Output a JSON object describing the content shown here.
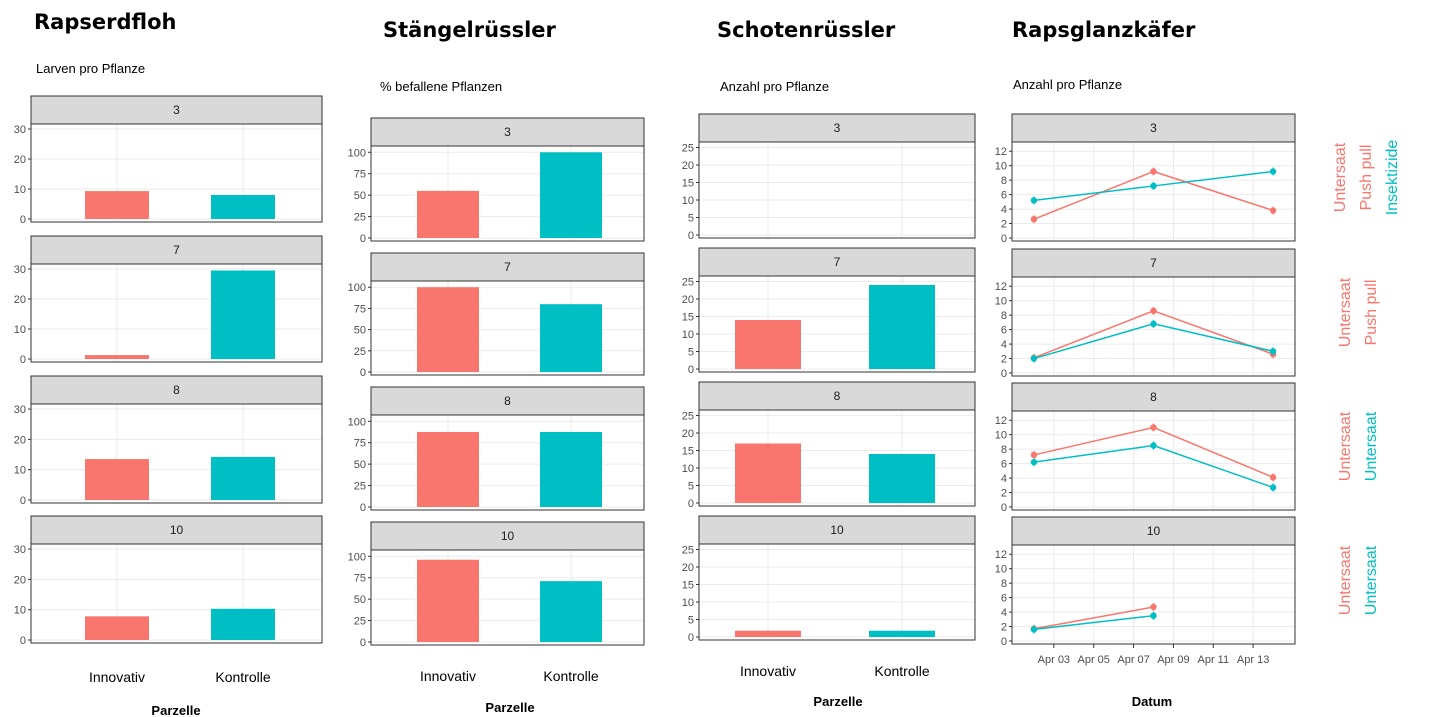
{
  "chart_data": [
    {
      "type": "bar",
      "title": "Rapserdfloh",
      "ylabel": "Larven pro Pflanze",
      "xlabel": "Parzelle",
      "categories": [
        "Innovativ",
        "Kontrolle"
      ],
      "facet_labels": [
        "3",
        "7",
        "8",
        "10"
      ],
      "ylim": [
        0,
        31
      ],
      "yticks": [
        "0",
        "10",
        "20",
        "30"
      ],
      "series": [
        {
          "values": [
            9.3,
            8.0
          ],
          "colors": [
            "#F8766D",
            "#00BFC4"
          ]
        },
        {
          "values": [
            1.3,
            29.5
          ],
          "colors": [
            "#F8766D",
            "#00BFC4"
          ]
        },
        {
          "values": [
            13.5,
            14.2
          ],
          "colors": [
            "#F8766D",
            "#00BFC4"
          ]
        },
        {
          "values": [
            7.8,
            10.3
          ],
          "colors": [
            "#F8766D",
            "#00BFC4"
          ]
        }
      ]
    },
    {
      "type": "bar",
      "title": "Stängelrüssler",
      "ylabel": "% befallene Pflanzen",
      "xlabel": "Parzelle",
      "categories": [
        "Innovativ",
        "Kontrolle"
      ],
      "facet_labels": [
        "3",
        "7",
        "8",
        "10"
      ],
      "ylim": [
        0,
        105
      ],
      "yticks": [
        "0",
        "25",
        "50",
        "75",
        "100"
      ],
      "series": [
        {
          "values": [
            55,
            100
          ],
          "colors": [
            "#F8766D",
            "#00BFC4"
          ]
        },
        {
          "values": [
            100,
            80
          ],
          "colors": [
            "#F8766D",
            "#00BFC4"
          ]
        },
        {
          "values": [
            87.5,
            87.5
          ],
          "colors": [
            "#F8766D",
            "#00BFC4"
          ]
        },
        {
          "values": [
            96,
            71
          ],
          "colors": [
            "#F8766D",
            "#00BFC4"
          ]
        }
      ]
    },
    {
      "type": "bar",
      "title": "Schotenrüssler",
      "ylabel": "Anzahl pro Pflanze",
      "xlabel": "Parzelle",
      "categories": [
        "Innovativ",
        "Kontrolle"
      ],
      "facet_labels": [
        "3",
        "7",
        "8",
        "10"
      ],
      "ylim": [
        0,
        26
      ],
      "yticks": [
        "0",
        "5",
        "10",
        "15",
        "20",
        "25"
      ],
      "series": [
        {
          "values": [
            0,
            0
          ],
          "colors": [
            "#F8766D",
            "#00BFC4"
          ]
        },
        {
          "values": [
            14,
            24
          ],
          "colors": [
            "#F8766D",
            "#00BFC4"
          ]
        },
        {
          "values": [
            17,
            14
          ],
          "colors": [
            "#F8766D",
            "#00BFC4"
          ]
        },
        {
          "values": [
            1.8,
            1.8
          ],
          "colors": [
            "#F8766D",
            "#00BFC4"
          ]
        }
      ]
    },
    {
      "type": "line",
      "title": "Rapsglanzkäfer",
      "ylabel": "Anzahl pro Pflanze",
      "xlabel": "Datum",
      "facet_labels": [
        "3",
        "7",
        "8",
        "10"
      ],
      "x_range": [
        "2025-04-01",
        "2025-04-15"
      ],
      "x_tick_dates": [
        "2025-04-03",
        "2025-04-05",
        "2025-04-07",
        "2025-04-09",
        "2025-04-11",
        "2025-04-13"
      ],
      "x_tick_labels": [
        "Apr 03",
        "Apr 05",
        "Apr 07",
        "Apr 09",
        "Apr 11",
        "Apr 13"
      ],
      "ylim": [
        0,
        13
      ],
      "yticks": [
        "0",
        "2",
        "4",
        "6",
        "8",
        "10",
        "12"
      ],
      "panels": [
        {
          "series": [
            {
              "color": "#F8766D",
              "dates": [
                "2025-04-02",
                "2025-04-08",
                "2025-04-14"
              ],
              "values": [
                2.6,
                9.2,
                3.8
              ]
            },
            {
              "color": "#00BFC4",
              "dates": [
                "2025-04-02",
                "2025-04-08",
                "2025-04-14"
              ],
              "values": [
                5.2,
                7.2,
                9.2
              ]
            }
          ],
          "group_labels": [
            {
              "text": "Untersaat",
              "color": "#F8766D"
            },
            {
              "text": "Push pull",
              "color": "#F8766D"
            },
            {
              "text": "Insektizide",
              "color": "#00BFC4"
            }
          ]
        },
        {
          "series": [
            {
              "color": "#F8766D",
              "dates": [
                "2025-04-02",
                "2025-04-08",
                "2025-04-14"
              ],
              "values": [
                2.1,
                8.6,
                2.6
              ]
            },
            {
              "color": "#00BFC4",
              "dates": [
                "2025-04-02",
                "2025-04-08",
                "2025-04-14"
              ],
              "values": [
                2.0,
                6.8,
                3.0
              ]
            }
          ],
          "group_labels": [
            {
              "text": "Untersaat",
              "color": "#F8766D"
            },
            {
              "text": "Push pull",
              "color": "#F8766D"
            }
          ]
        },
        {
          "series": [
            {
              "color": "#F8766D",
              "dates": [
                "2025-04-02",
                "2025-04-08",
                "2025-04-14"
              ],
              "values": [
                7.2,
                11.0,
                4.1
              ]
            },
            {
              "color": "#00BFC4",
              "dates": [
                "2025-04-02",
                "2025-04-08",
                "2025-04-14"
              ],
              "values": [
                6.2,
                8.5,
                2.7
              ]
            }
          ],
          "group_labels": [
            {
              "text": "Untersaat",
              "color": "#F8766D"
            },
            {
              "text": "Untersaat",
              "color": "#00BFC4"
            }
          ]
        },
        {
          "series": [
            {
              "color": "#F8766D",
              "dates": [
                "2025-04-02",
                "2025-04-08"
              ],
              "values": [
                1.7,
                4.7
              ]
            },
            {
              "color": "#00BFC4",
              "dates": [
                "2025-04-02",
                "2025-04-08"
              ],
              "values": [
                1.6,
                3.5
              ]
            }
          ],
          "group_labels": [
            {
              "text": "Untersaat",
              "color": "#F8766D"
            },
            {
              "text": "Untersaat",
              "color": "#00BFC4"
            }
          ]
        }
      ]
    }
  ]
}
